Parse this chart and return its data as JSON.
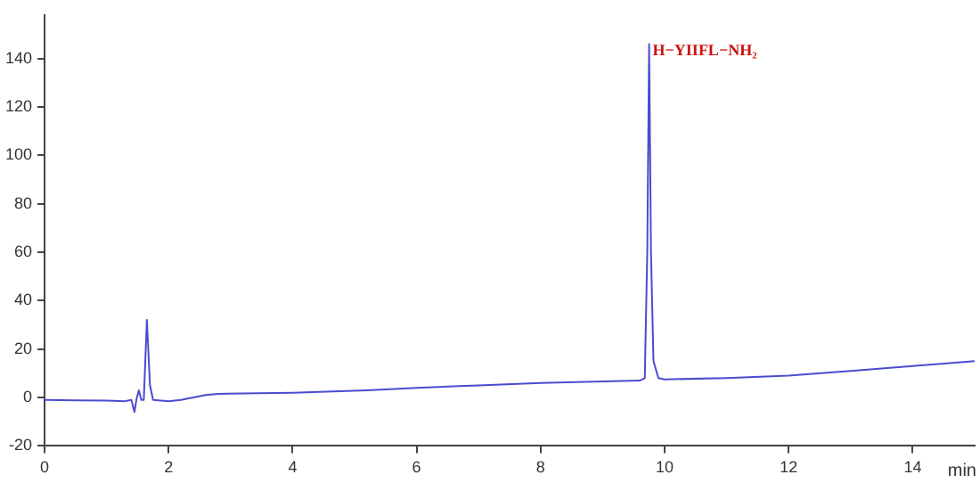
{
  "chart_data": {
    "type": "line",
    "xlabel": "min",
    "series": [
      {
        "color": "#4b4bd0",
        "x": [
          0,
          0.5,
          1.0,
          1.3,
          1.4,
          1.45,
          1.48,
          1.52,
          1.56,
          1.6,
          1.65,
          1.7,
          1.75,
          2.0,
          2.2,
          2.6,
          2.8,
          4,
          5.2,
          6,
          7,
          8,
          9.6,
          9.68,
          9.72,
          9.75,
          9.78,
          9.82,
          9.9,
          10,
          11,
          12,
          13,
          14,
          15
        ],
        "values": [
          -1,
          -1.2,
          -1.3,
          -1.5,
          -1,
          -6,
          -1,
          3,
          -1,
          -1,
          32,
          5,
          -1,
          -1.5,
          -1,
          1,
          1.5,
          2,
          3,
          4,
          5,
          6,
          7,
          8,
          60,
          146,
          60,
          15,
          8,
          7.5,
          8,
          9,
          11,
          13,
          15
        ]
      }
    ],
    "annotations": [
      {
        "text": "H−YIIFL−NH₂",
        "x": 9.75,
        "y": 146
      }
    ],
    "xlim": [
      0,
      15
    ],
    "xticks": [
      0,
      2,
      4,
      6,
      8,
      10,
      12,
      14
    ],
    "ylim": [
      -20,
      158
    ],
    "yticks": [
      -20,
      0,
      20,
      40,
      60,
      80,
      100,
      120,
      140
    ],
    "grid": false,
    "legend": false,
    "marker": "none",
    "line_style": "solid"
  }
}
